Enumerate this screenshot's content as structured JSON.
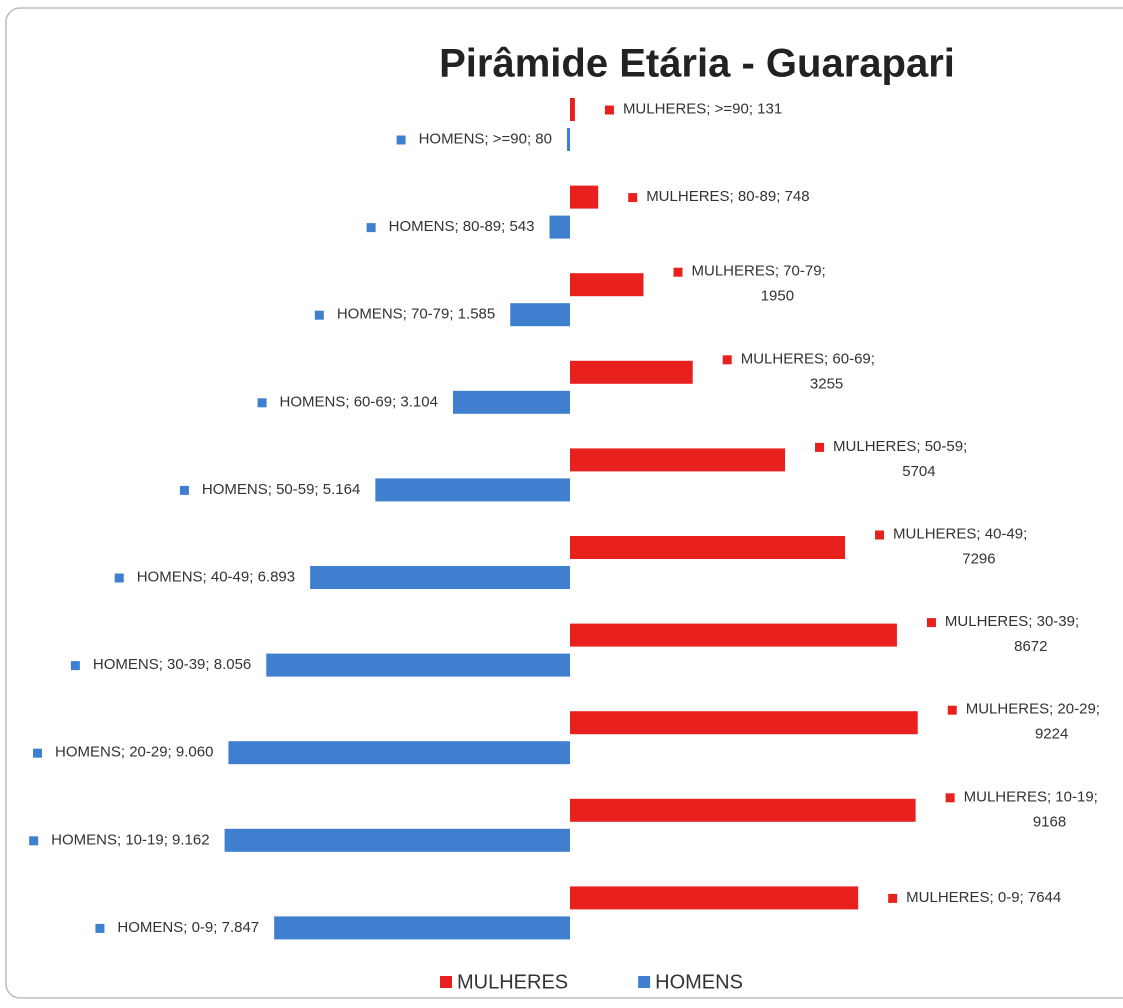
{
  "chart_data": {
    "type": "pyramid",
    "title": "Pirâmide Etária - Guarapari",
    "categories": [
      ">=90",
      "80-89",
      "70-79",
      "60-69",
      "50-59",
      "40-49",
      "30-39",
      "20-29",
      "10-19",
      "0-9"
    ],
    "series": [
      {
        "name": "MULHERES",
        "color": "#e8211f",
        "side": "right",
        "values": [
          131,
          748,
          1950,
          3255,
          5704,
          7296,
          8672,
          9224,
          9168,
          7644
        ],
        "value_labels": [
          "MULHERES; >=90; 131",
          "MULHERES; 80-89; 748",
          "MULHERES; 70-79; 1950",
          "MULHERES; 60-69; 3255",
          "MULHERES; 50-59; 5704",
          "MULHERES; 40-49; 7296",
          "MULHERES; 30-39; 8672",
          "MULHERES; 20-29; 9224",
          "MULHERES; 10-19; 9168",
          "MULHERES; 0-9; 7644"
        ]
      },
      {
        "name": "HOMENS",
        "color": "#3f7fcf",
        "side": "left",
        "values": [
          80,
          543,
          1585,
          3104,
          5164,
          6893,
          8056,
          9060,
          9162,
          7847
        ],
        "value_labels": [
          "HOMENS; >=90; 80",
          "HOMENS; 80-89; 543",
          "HOMENS; 70-79; 1.585",
          "HOMENS; 60-69; 3.104",
          "HOMENS; 50-59; 5.164",
          "HOMENS; 40-49; 6.893",
          "HOMENS; 30-39; 8.056",
          "HOMENS; 20-29; 9.060",
          "HOMENS; 10-19; 9.162",
          "HOMENS; 0-9; 7.847"
        ]
      }
    ],
    "legend": "bottom"
  }
}
